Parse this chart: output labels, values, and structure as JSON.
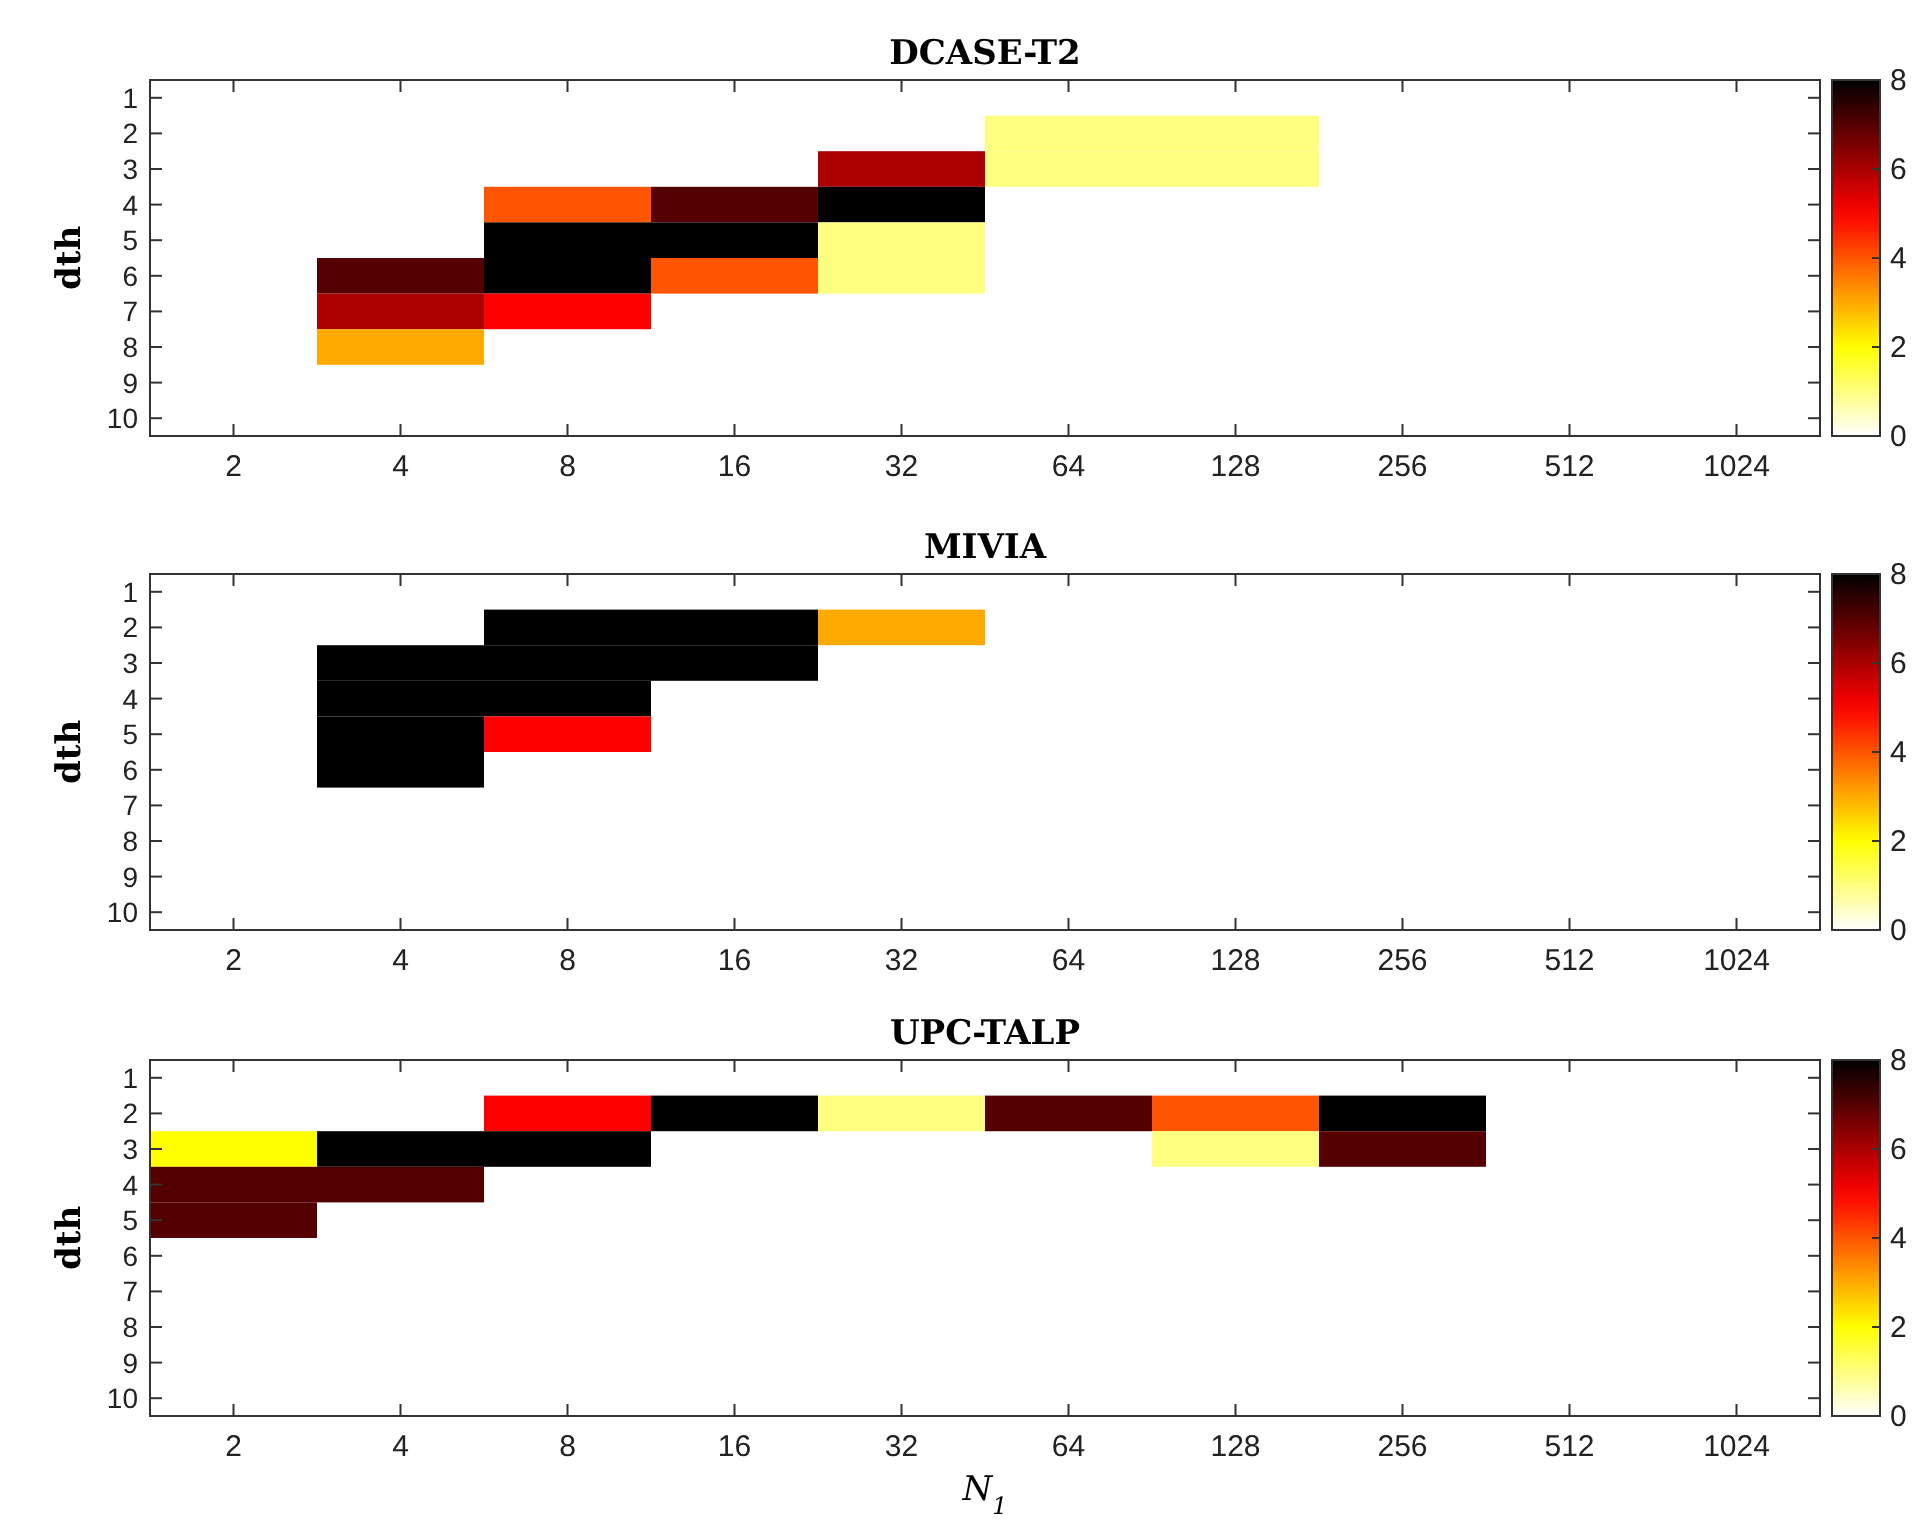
{
  "chart_data": [
    {
      "type": "heatmap",
      "title": "DCASE-T2",
      "ylabel": "dth",
      "categories": [
        "2",
        "4",
        "8",
        "16",
        "32",
        "64",
        "128",
        "256",
        "512",
        "1024"
      ],
      "y_categories": [
        "1",
        "2",
        "3",
        "4",
        "5",
        "6",
        "7",
        "8",
        "9",
        "10"
      ],
      "clim": [
        0,
        8
      ],
      "cticks": [
        0,
        2,
        4,
        6,
        8
      ],
      "cells": [
        [
          null,
          null,
          null,
          null,
          null,
          null,
          null,
          null,
          null,
          null
        ],
        [
          null,
          null,
          null,
          null,
          null,
          1,
          1,
          null,
          null,
          null
        ],
        [
          null,
          null,
          null,
          null,
          6,
          1,
          1,
          null,
          null,
          null
        ],
        [
          null,
          null,
          4,
          7,
          8,
          null,
          null,
          null,
          null,
          null
        ],
        [
          null,
          null,
          8,
          8,
          1,
          null,
          null,
          null,
          null,
          null
        ],
        [
          null,
          7,
          8,
          4,
          1,
          null,
          null,
          null,
          null,
          null
        ],
        [
          null,
          6,
          5,
          null,
          null,
          null,
          null,
          null,
          null,
          null
        ],
        [
          null,
          3,
          null,
          null,
          null,
          null,
          null,
          null,
          null,
          null
        ],
        [
          null,
          null,
          null,
          null,
          null,
          null,
          null,
          null,
          null,
          null
        ],
        [
          null,
          null,
          null,
          null,
          null,
          null,
          null,
          null,
          null,
          null
        ]
      ]
    },
    {
      "type": "heatmap",
      "title": "MIVIA",
      "ylabel": "dth",
      "categories": [
        "2",
        "4",
        "8",
        "16",
        "32",
        "64",
        "128",
        "256",
        "512",
        "1024"
      ],
      "y_categories": [
        "1",
        "2",
        "3",
        "4",
        "5",
        "6",
        "7",
        "8",
        "9",
        "10"
      ],
      "clim": [
        0,
        8
      ],
      "cticks": [
        0,
        2,
        4,
        6,
        8
      ],
      "cells": [
        [
          null,
          null,
          null,
          null,
          null,
          null,
          null,
          null,
          null,
          null
        ],
        [
          null,
          null,
          8,
          8,
          3,
          null,
          null,
          null,
          null,
          null
        ],
        [
          null,
          8,
          8,
          8,
          null,
          null,
          null,
          null,
          null,
          null
        ],
        [
          null,
          8,
          8,
          null,
          null,
          null,
          null,
          null,
          null,
          null
        ],
        [
          null,
          8,
          5,
          null,
          null,
          null,
          null,
          null,
          null,
          null
        ],
        [
          null,
          8,
          null,
          null,
          null,
          null,
          null,
          null,
          null,
          null
        ],
        [
          null,
          null,
          null,
          null,
          null,
          null,
          null,
          null,
          null,
          null
        ],
        [
          null,
          null,
          null,
          null,
          null,
          null,
          null,
          null,
          null,
          null
        ],
        [
          null,
          null,
          null,
          null,
          null,
          null,
          null,
          null,
          null,
          null
        ],
        [
          null,
          null,
          null,
          null,
          null,
          null,
          null,
          null,
          null,
          null
        ]
      ]
    },
    {
      "type": "heatmap",
      "title": "UPC-TALP",
      "xlabel": "N$_{1}$",
      "ylabel": "dth",
      "categories": [
        "2",
        "4",
        "8",
        "16",
        "32",
        "64",
        "128",
        "256",
        "512",
        "1024"
      ],
      "y_categories": [
        "1",
        "2",
        "3",
        "4",
        "5",
        "6",
        "7",
        "8",
        "9",
        "10"
      ],
      "clim": [
        0,
        8
      ],
      "cticks": [
        0,
        2,
        4,
        6,
        8
      ],
      "cells": [
        [
          null,
          null,
          null,
          null,
          null,
          null,
          null,
          null,
          null,
          null
        ],
        [
          null,
          null,
          5,
          8,
          1,
          7,
          4,
          8,
          null,
          null
        ],
        [
          2,
          8,
          8,
          null,
          null,
          null,
          1,
          7,
          null,
          null
        ],
        [
          7,
          7,
          null,
          null,
          null,
          null,
          null,
          null,
          null,
          null
        ],
        [
          7,
          null,
          null,
          null,
          null,
          null,
          null,
          null,
          null,
          null
        ],
        [
          null,
          null,
          null,
          null,
          null,
          null,
          null,
          null,
          null,
          null
        ],
        [
          null,
          null,
          null,
          null,
          null,
          null,
          null,
          null,
          null,
          null
        ],
        [
          null,
          null,
          null,
          null,
          null,
          null,
          null,
          null,
          null,
          null
        ],
        [
          null,
          null,
          null,
          null,
          null,
          null,
          null,
          null,
          null,
          null
        ],
        [
          null,
          null,
          null,
          null,
          null,
          null,
          null,
          null,
          null,
          null
        ]
      ]
    }
  ]
}
